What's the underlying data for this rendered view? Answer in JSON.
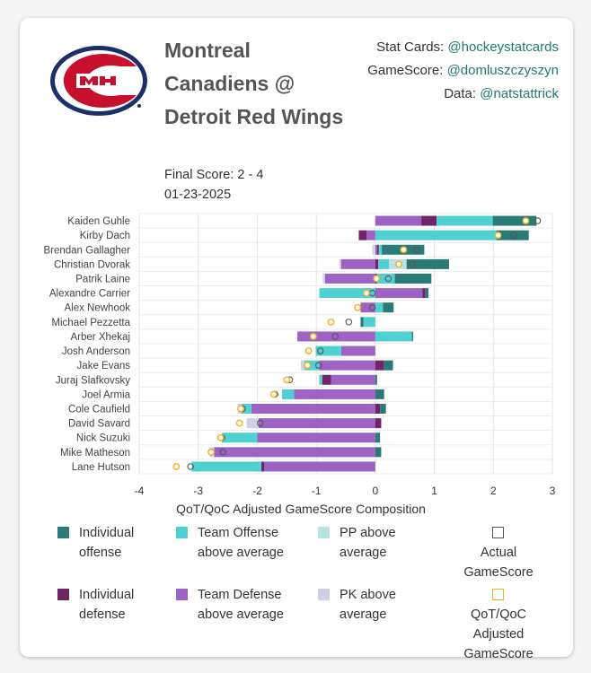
{
  "header": {
    "title": "Montreal Canadiens @ Detroit Red Wings",
    "final_score": "Final Score: 2 - 4",
    "date": "01-23-2025",
    "credits": [
      {
        "label": "Stat Cards: ",
        "handle": "@hockeystatcards"
      },
      {
        "label": "GameScore: ",
        "handle": "@domluszczyszyn"
      },
      {
        "label": "Data: ",
        "handle": "@natstattrick"
      }
    ]
  },
  "colors": {
    "ind_off": "#2a7b78",
    "team_off": "#4fd1d3",
    "pp": "#b8e2e4",
    "ind_def": "#6e2466",
    "team_def": "#9c63c4",
    "pk": "#cfd0e6",
    "actual": "#555555",
    "adj": "#f0b429"
  },
  "chart_data": {
    "type": "bar",
    "orientation": "horizontal-stacked",
    "xlabel": "QoT/QoC Adjusted GameScore Composition",
    "xlim": [
      -4,
      3
    ],
    "xticks": [
      "-4",
      "-3",
      "-2",
      "-1",
      "0",
      "1",
      "2",
      "3"
    ],
    "grid": true,
    "categories": [
      "Kaiden Guhle",
      "Kirby Dach",
      "Brendan Gallagher",
      "Christian Dvorak",
      "Patrik Laine",
      "Alexandre Carrier",
      "Alex Newhook",
      "Michael Pezzetta",
      "Arber Xhekaj",
      "Josh Anderson",
      "Jake Evans",
      "Juraj Slafkovsky",
      "Joel Armia",
      "Cole Caufield",
      "David Savard",
      "Nick Suzuki",
      "Mike Matheson",
      "Lane Hutson"
    ],
    "series": [
      {
        "name": "Team Defense above average",
        "key": "team_def",
        "values": [
          0.78,
          -0.15,
          0.03,
          -0.58,
          -0.85,
          0.8,
          -0.25,
          0,
          -1.32,
          -0.58,
          -0.95,
          -0.75,
          -1.38,
          -2.1,
          -1.98,
          -2.0,
          -2.73,
          -1.88
        ]
      },
      {
        "name": "Individual defense",
        "key": "ind_def",
        "values": [
          0.26,
          -0.13,
          0.03,
          0.05,
          0.03,
          0.05,
          0,
          0,
          0,
          0,
          0.15,
          -0.15,
          0,
          0.08,
          0.1,
          0,
          0,
          -0.05
        ]
      },
      {
        "name": "Team Offense above average",
        "key": "team_off",
        "values": [
          0.95,
          2.05,
          0.05,
          0.18,
          0.3,
          -0.95,
          0.13,
          -0.2,
          0.62,
          -0.43,
          -0.25,
          -0.05,
          -0.2,
          -0.17,
          0,
          -0.6,
          0,
          -1.18
        ]
      },
      {
        "name": "PP above average",
        "key": "pp",
        "values": [
          0,
          0,
          0,
          0.3,
          0,
          0,
          0,
          0,
          0,
          0,
          0,
          0,
          0,
          0,
          0,
          0,
          0,
          0
        ]
      },
      {
        "name": "PK above average",
        "key": "pk",
        "values": [
          0,
          0,
          -0.05,
          -0.03,
          -0.04,
          0,
          0,
          0,
          0,
          0,
          -0.06,
          0,
          0,
          -0.06,
          -0.2,
          0,
          -0.08,
          0
        ]
      },
      {
        "name": "Individual offense",
        "key": "ind_off",
        "values": [
          0.74,
          0.55,
          0.72,
          0.72,
          0.62,
          0.05,
          0.18,
          -0.05,
          0.02,
          0,
          0.15,
          0.03,
          0.15,
          0.1,
          0,
          0.08,
          0.1,
          0
        ]
      }
    ],
    "actual_gamescore": [
      2.75,
      2.35,
      0.7,
      0.63,
      0.22,
      -0.05,
      -0.05,
      -0.45,
      -0.68,
      -0.93,
      -0.96,
      -1.45,
      -1.7,
      -2.25,
      -1.95,
      -2.6,
      -2.58,
      -3.13
    ],
    "adjusted_gamescore": [
      2.55,
      2.08,
      0.48,
      0.4,
      0.02,
      -0.15,
      -0.3,
      -0.75,
      -1.05,
      -1.13,
      -1.15,
      -1.5,
      -1.72,
      -2.28,
      -2.3,
      -2.62,
      -2.78,
      -3.37
    ],
    "legend": [
      {
        "key": "ind_off",
        "label": "Individual offense",
        "kind": "box"
      },
      {
        "key": "team_off",
        "label": "Team Offense above average",
        "kind": "box"
      },
      {
        "key": "pp",
        "label": "PP above average",
        "kind": "box"
      },
      {
        "key": "actual",
        "label": "Actual GameScore",
        "kind": "outline"
      },
      {
        "key": "ind_def",
        "label": "Individual defense",
        "kind": "box"
      },
      {
        "key": "team_def",
        "label": "Team Defense above average",
        "kind": "box"
      },
      {
        "key": "pk",
        "label": "PK above average",
        "kind": "box"
      },
      {
        "key": "adj",
        "label": "QoT/QoC Adjusted GameScore",
        "kind": "outline"
      }
    ]
  }
}
